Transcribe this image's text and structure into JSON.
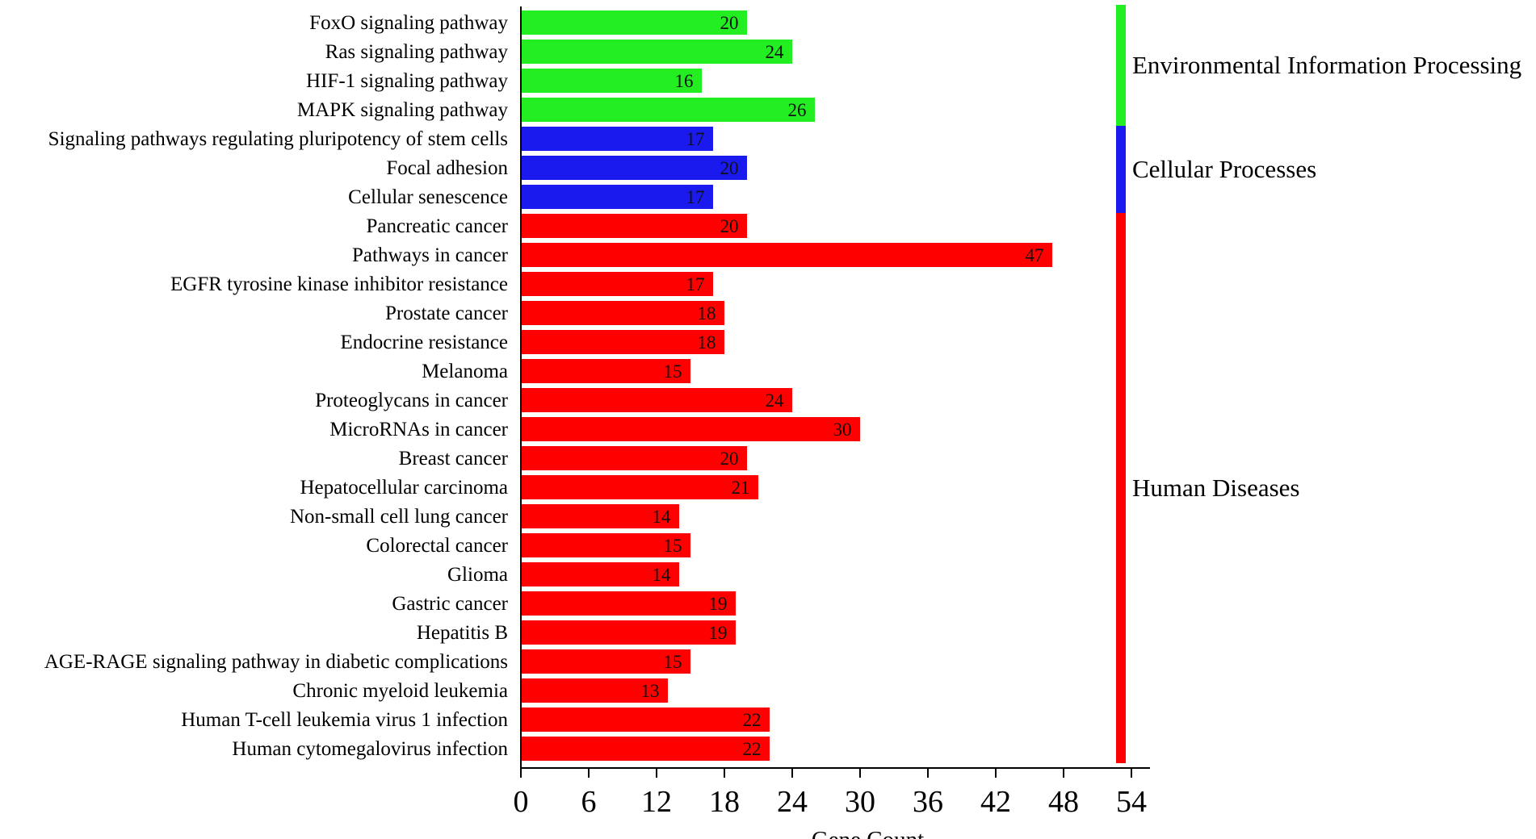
{
  "chart_data": {
    "type": "bar",
    "orientation": "horizontal",
    "title": "",
    "xlabel": "Gene Count",
    "ylabel": "",
    "xlim": [
      0,
      56
    ],
    "xticks": [
      0,
      6,
      12,
      18,
      24,
      30,
      36,
      42,
      48,
      54
    ],
    "groups": [
      {
        "name": "Environmental Information Processing",
        "color": "#22ee22",
        "start": 0,
        "end": 3
      },
      {
        "name": "Cellular Processes",
        "color": "#1a1aee",
        "start": 4,
        "end": 6
      },
      {
        "name": "Human Diseases",
        "color": "#ff0000",
        "start": 7,
        "end": 25
      }
    ],
    "categories": [
      "FoxO signaling pathway",
      "Ras signaling pathway",
      "HIF-1 signaling pathway",
      "MAPK signaling pathway",
      "Signaling pathways regulating pluripotency of stem cells",
      "Focal adhesion",
      "Cellular senescence",
      "Pancreatic cancer",
      "Pathways in cancer",
      "EGFR tyrosine kinase inhibitor resistance",
      "Prostate cancer",
      "Endocrine resistance",
      "Melanoma",
      "Proteoglycans in cancer",
      "MicroRNAs in cancer",
      "Breast cancer",
      "Hepatocellular carcinoma",
      "Non-small cell lung cancer",
      "Colorectal cancer",
      "Glioma",
      "Gastric cancer",
      "Hepatitis B",
      "AGE-RAGE signaling pathway in diabetic complications",
      "Chronic myeloid leukemia",
      "Human T-cell leukemia virus 1 infection",
      "Human cytomegalovirus infection"
    ],
    "values": [
      20,
      24,
      16,
      26,
      17,
      20,
      17,
      20,
      47,
      17,
      18,
      18,
      15,
      24,
      30,
      20,
      21,
      14,
      15,
      14,
      19,
      19,
      15,
      13,
      22,
      22
    ]
  }
}
